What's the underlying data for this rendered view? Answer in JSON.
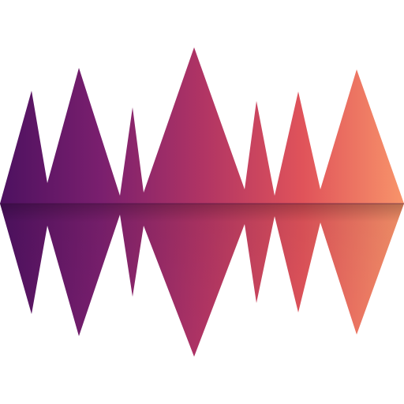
{
  "graphic": {
    "icon": "sound-wave-logo-icon",
    "description_visible_text": "",
    "colors": {
      "gradient_start": "#4d1160",
      "gradient_mid1": "#7a1f6e",
      "gradient_mid2": "#b03464",
      "gradient_mid3": "#e0535a",
      "gradient_end": "#f8946a",
      "background": "#ffffff"
    }
  }
}
